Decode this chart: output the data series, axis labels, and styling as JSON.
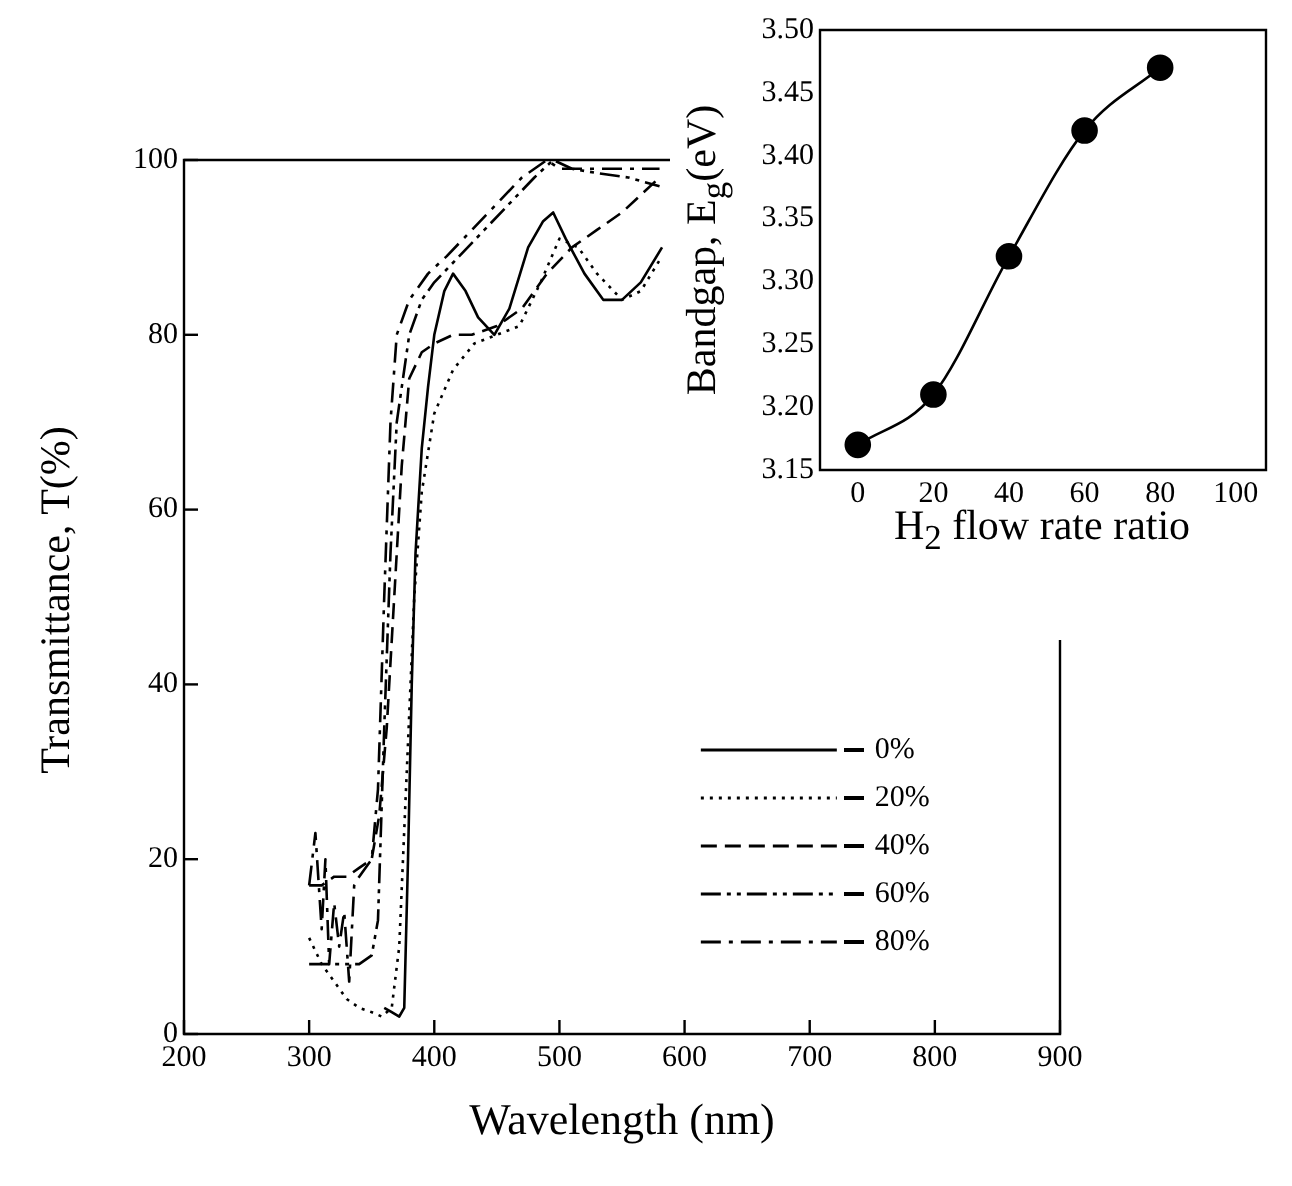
{
  "chart_data": [
    {
      "type": "line",
      "xlabel": "Wavelength (nm)",
      "ylabel": "Transmittance, T(%)",
      "xlim": [
        200,
        900
      ],
      "ylim": [
        0,
        100
      ],
      "xticks": [
        200,
        300,
        400,
        500,
        600,
        700,
        800,
        900
      ],
      "yticks": [
        0,
        20,
        40,
        60,
        80,
        100
      ],
      "legend": "right",
      "marker": "none",
      "series": [
        {
          "name": "0%",
          "color": "#000000",
          "line_style": "solid",
          "x": [
            360,
            366,
            372,
            376,
            379,
            382,
            385,
            390,
            395,
            400,
            408,
            415,
            425,
            435,
            448,
            460,
            475,
            487,
            495,
            505,
            520,
            535,
            550,
            565,
            582
          ],
          "values": [
            3,
            2.5,
            2,
            3,
            20,
            40,
            55,
            67,
            74,
            80,
            85,
            87,
            85,
            82,
            80,
            83,
            90,
            93,
            94,
            91,
            87,
            84,
            84,
            86,
            90
          ]
        },
        {
          "name": "20%",
          "color": "#000000",
          "line_style": "dotted",
          "x": [
            300,
            310,
            320,
            330,
            340,
            350,
            358,
            366,
            372,
            378,
            384,
            390,
            400,
            415,
            432,
            450,
            468,
            485,
            500,
            515,
            530,
            550,
            565,
            582
          ],
          "values": [
            11,
            8,
            6,
            4,
            3,
            2.5,
            2,
            3,
            10,
            30,
            50,
            62,
            71,
            76,
            79,
            80,
            81,
            86,
            91,
            90,
            87,
            84,
            85,
            89
          ]
        },
        {
          "name": "40%",
          "color": "#000000",
          "line_style": "dashed",
          "x": [
            300,
            310,
            320,
            330,
            340,
            350,
            356,
            362,
            368,
            374,
            380,
            390,
            400,
            415,
            430,
            450,
            470,
            490,
            510,
            530,
            550,
            565,
            580
          ],
          "values": [
            17,
            17,
            18,
            18,
            19,
            20,
            25,
            35,
            50,
            65,
            75,
            78,
            79,
            80,
            80,
            81,
            83,
            87,
            90,
            92,
            94,
            96,
            98
          ]
        },
        {
          "name": "60%",
          "color": "#000000",
          "line_style": "dashdotdot",
          "x": [
            300,
            310,
            320,
            330,
            340,
            350,
            355,
            360,
            365,
            370,
            380,
            390,
            400,
            420,
            440,
            460,
            480,
            495,
            510,
            530,
            555,
            580
          ],
          "values": [
            8,
            8,
            8,
            8,
            8,
            9,
            13,
            35,
            55,
            70,
            80,
            84,
            86,
            89,
            92,
            95,
            98,
            100,
            99,
            98.5,
            98,
            97
          ]
        },
        {
          "name": "80%",
          "color": "#000000",
          "line_style": "dashdot",
          "x": [
            300,
            305,
            310,
            313,
            316,
            320,
            324,
            328,
            332,
            336,
            340,
            345,
            350,
            355,
            360,
            365,
            370,
            380,
            395,
            410,
            430,
            450,
            470,
            490,
            500,
            520,
            540,
            560,
            580
          ],
          "values": [
            17,
            23,
            12,
            20,
            8,
            15,
            10,
            14,
            6,
            17,
            18,
            19,
            20,
            28,
            50,
            70,
            80,
            84,
            87,
            89,
            92,
            95,
            98,
            100,
            99,
            99,
            99,
            99,
            99
          ]
        }
      ]
    },
    {
      "type": "line",
      "xlabel": "H$_{2}$ flow rate ratio",
      "ylabel": "Bandgap, E$_{g}$(eV)",
      "xlim": [
        -10,
        108
      ],
      "ylim": [
        3.15,
        3.5
      ],
      "xticks": [
        0,
        20,
        40,
        60,
        80,
        100
      ],
      "yticks": [
        {
          "value": 3.15,
          "label": "3.15"
        },
        {
          "value": 3.2,
          "label": "3.20"
        },
        {
          "value": 3.25,
          "label": "3.25"
        },
        {
          "value": 3.3,
          "label": "3.30"
        },
        {
          "value": 3.35,
          "label": "3.35"
        },
        {
          "value": 3.4,
          "label": "3.40"
        },
        {
          "value": 3.45,
          "label": "3.45"
        },
        {
          "value": 3.5,
          "label": "3.50"
        }
      ],
      "marker": "circle",
      "color": "#000000",
      "x": [
        0,
        20,
        40,
        60,
        80
      ],
      "values": [
        3.17,
        3.21,
        3.32,
        3.42,
        3.47
      ]
    }
  ]
}
